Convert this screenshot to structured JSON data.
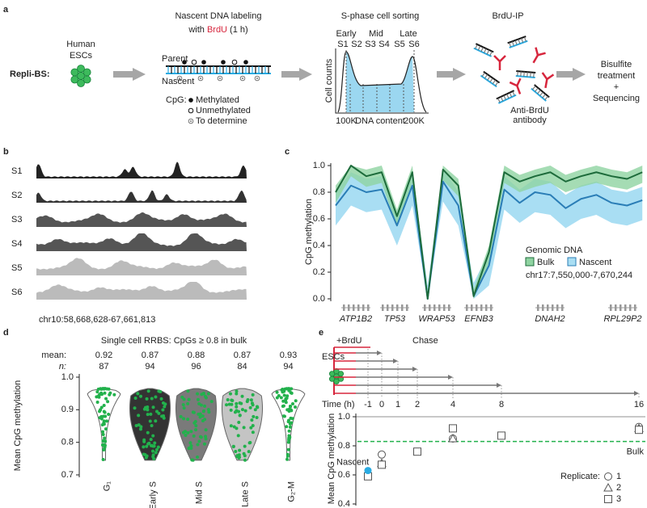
{
  "panel_a": {
    "letter": "a",
    "method": "Repli-BS:",
    "cells": [
      "Human",
      "ESCs"
    ],
    "labeling_title": "Nascent DNA labeling",
    "labeling_sub": [
      "with ",
      "BrdU",
      " (1 h)"
    ],
    "parent": "Parent",
    "nascent": "Nascent",
    "cpg": "CpG:",
    "cpg_states": [
      "Methylated",
      "Unmethylated",
      "To determine"
    ],
    "sorting_title": "S-phase cell sorting",
    "phases": [
      "Early",
      "Mid",
      "Late"
    ],
    "fractions": [
      "S1",
      "S2",
      "S3",
      "S4",
      "S5",
      "S6"
    ],
    "y_label": "Cell counts",
    "x_labels": [
      "100K",
      "DNA content",
      "200K"
    ],
    "ip_title": "BrdU-IP",
    "antibody": [
      "Anti-BrdU",
      "antibody"
    ],
    "final_step": [
      "Bisulfite",
      "treatment",
      "+",
      "Sequencing"
    ]
  },
  "panel_b": {
    "letter": "b",
    "tracks": [
      "S1",
      "S2",
      "S3",
      "S4",
      "S5",
      "S6"
    ],
    "region": "chr10:58,668,628-67,661,813"
  },
  "chart_data": [
    {
      "letter": "c",
      "type": "line",
      "ylabel": "CpG methylation",
      "legend_title": "Genomic DNA",
      "region": "chr17:7,550,000-7,670,244",
      "genes": [
        "ATP1B2",
        "TP53",
        "WRAP53",
        "EFNB3",
        "DNAH2",
        "RPL29P2"
      ],
      "x": [
        7550000,
        7556000,
        7562000,
        7568000,
        7574000,
        7580000,
        7586000,
        7592000,
        7598000,
        7604000,
        7610000,
        7616000,
        7622000,
        7628000,
        7634000,
        7640000,
        7646000,
        7652000,
        7658000,
        7664000,
        7670000
      ],
      "xlim": [
        7550000,
        7670244
      ],
      "ylim": [
        0,
        1
      ],
      "yticks": [
        {
          "value": 0,
          "label": "0.0"
        },
        0.2,
        0.4,
        0.6,
        0.8,
        {
          "value": 1,
          "label": "1.0"
        }
      ],
      "series": [
        {
          "name": "Bulk",
          "color": "#1d6b3b",
          "band_color": "#8fd3a1",
          "values": [
            0.8,
            1.0,
            0.92,
            0.95,
            0.62,
            0.95,
            0.0,
            0.97,
            0.85,
            0.02,
            0.35,
            0.95,
            0.88,
            0.92,
            0.95,
            0.88,
            0.92,
            0.95,
            0.92,
            0.9,
            0.95
          ],
          "lower": [
            0.72,
            0.92,
            0.84,
            0.87,
            0.54,
            0.87,
            0.0,
            0.89,
            0.77,
            0.0,
            0.27,
            0.87,
            0.8,
            0.84,
            0.87,
            0.8,
            0.84,
            0.87,
            0.84,
            0.82,
            0.87
          ],
          "upper": [
            0.85,
            1.0,
            0.97,
            1.0,
            0.67,
            1.0,
            0.05,
            1.0,
            0.9,
            0.07,
            0.4,
            1.0,
            0.93,
            0.97,
            1.0,
            0.93,
            0.97,
            1.0,
            0.97,
            0.95,
            1.0
          ]
        },
        {
          "name": "Nascent",
          "color": "#2a7db6",
          "band_color": "#a9def3",
          "values": [
            0.7,
            0.85,
            0.8,
            0.82,
            0.55,
            0.85,
            0.0,
            0.88,
            0.7,
            0.02,
            0.25,
            0.82,
            0.72,
            0.8,
            0.78,
            0.68,
            0.75,
            0.78,
            0.72,
            0.7,
            0.74
          ],
          "lower": [
            0.55,
            0.7,
            0.65,
            0.67,
            0.4,
            0.7,
            0.0,
            0.73,
            0.55,
            0.0,
            0.1,
            0.67,
            0.57,
            0.65,
            0.63,
            0.53,
            0.6,
            0.63,
            0.57,
            0.55,
            0.59
          ],
          "upper": [
            0.8,
            0.95,
            0.9,
            0.92,
            0.65,
            0.95,
            0.1,
            0.98,
            0.8,
            0.12,
            0.35,
            0.92,
            0.82,
            0.9,
            0.88,
            0.78,
            0.85,
            0.88,
            0.82,
            0.8,
            0.84
          ]
        }
      ]
    },
    {
      "letter": "d",
      "type": "violin",
      "title": "Single cell RRBS: CpGs ≥ 0.8 in bulk",
      "ylabel": "Mean CpG methylation",
      "stat_labels": [
        "mean:",
        "n:"
      ],
      "categories": [
        "G₁",
        "Early S",
        "Mid S",
        "Late S",
        "G₂-M"
      ],
      "means": [
        0.92,
        0.87,
        0.88,
        0.87,
        0.93
      ],
      "n": [
        87,
        94,
        96,
        84,
        94
      ],
      "colors": [
        "#ffffff",
        "#333333",
        "#7a7a7a",
        "#c4c4c4",
        "#ffffff"
      ],
      "point_color": "#22b14c",
      "ylim": [
        0.7,
        1.0
      ],
      "yticks": [
        0.7,
        0.8,
        0.9,
        {
          "value": 1,
          "label": "1.0"
        }
      ]
    },
    {
      "letter": "e",
      "type": "scatter",
      "cells_label": "ESCs",
      "treatment_label": "+BrdU",
      "chase_label": "Chase",
      "xlabel": "Time (h)",
      "xticks": [
        -1,
        0,
        1,
        2,
        4,
        8,
        16
      ],
      "ylabel": "Mean CpG methylation",
      "ylim": [
        0.4,
        1.0
      ],
      "yticks": [
        0.4,
        0.6,
        0.8,
        {
          "value": 1,
          "label": "1.0"
        }
      ],
      "reference_line": {
        "name": "Bulk",
        "value": 0.83,
        "color": "#22b14c"
      },
      "nascent": {
        "name": "Nascent",
        "color": "#29abe2",
        "x": [
          -1
        ],
        "values": [
          0.63
        ]
      },
      "legend_title": "Replicate:",
      "series": [
        {
          "name": "1",
          "marker": "circle",
          "color": "#555555",
          "x": [
            0,
            4,
            16
          ],
          "values": [
            0.74,
            0.85,
            0.93
          ]
        },
        {
          "name": "2",
          "marker": "triangle",
          "color": "#555555",
          "x": [
            0,
            4,
            16
          ],
          "values": [
            0.68,
            0.85,
            0.92
          ]
        },
        {
          "name": "3",
          "marker": "square",
          "color": "#555555",
          "x": [
            -1,
            0,
            2,
            4,
            8,
            16
          ],
          "values": [
            0.59,
            0.67,
            0.76,
            0.92,
            0.87,
            0.91
          ]
        }
      ]
    }
  ]
}
